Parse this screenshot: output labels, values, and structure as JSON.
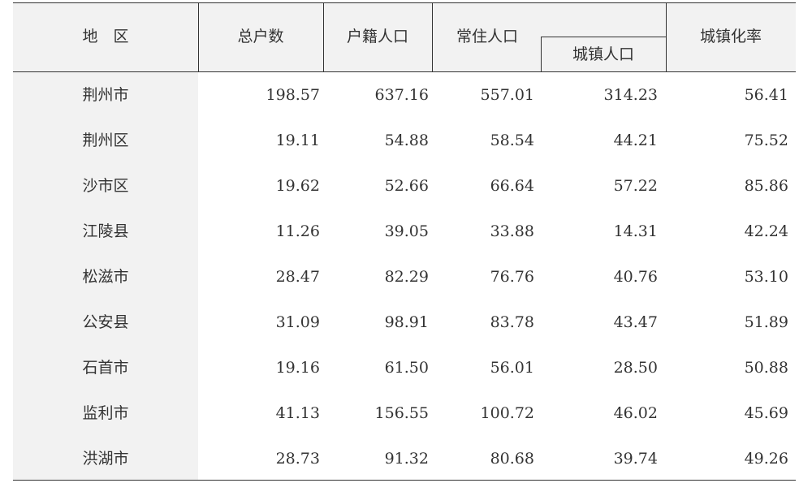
{
  "table": {
    "headers": {
      "region": "地　区",
      "total_households": "总户数",
      "registered_population": "户籍人口",
      "resident_population": "常住人口",
      "urban_population": "城镇人口",
      "urbanization_rate": "城镇化率"
    },
    "rows": [
      {
        "region": "荆州市",
        "total_households": "198.57",
        "registered_population": "637.16",
        "resident_population": "557.01",
        "urban_population": "314.23",
        "urbanization_rate": "56.41"
      },
      {
        "region": "荆州区",
        "total_households": "19.11",
        "registered_population": "54.88",
        "resident_population": "58.54",
        "urban_population": "44.21",
        "urbanization_rate": "75.52"
      },
      {
        "region": "沙市区",
        "total_households": "19.62",
        "registered_population": "52.66",
        "resident_population": "66.64",
        "urban_population": "57.22",
        "urbanization_rate": "85.86"
      },
      {
        "region": "江陵县",
        "total_households": "11.26",
        "registered_population": "39.05",
        "resident_population": "33.88",
        "urban_population": "14.31",
        "urbanization_rate": "42.24"
      },
      {
        "region": "松滋市",
        "total_households": "28.47",
        "registered_population": "82.29",
        "resident_population": "76.76",
        "urban_population": "40.76",
        "urbanization_rate": "53.10"
      },
      {
        "region": "公安县",
        "total_households": "31.09",
        "registered_population": "98.91",
        "resident_population": "83.78",
        "urban_population": "43.47",
        "urbanization_rate": "51.89"
      },
      {
        "region": "石首市",
        "total_households": "19.16",
        "registered_population": "61.50",
        "resident_population": "56.01",
        "urban_population": "28.50",
        "urbanization_rate": "50.88"
      },
      {
        "region": "监利市",
        "total_households": "41.13",
        "registered_population": "156.55",
        "resident_population": "100.72",
        "urban_population": "46.02",
        "urbanization_rate": "45.69"
      },
      {
        "region": "洪湖市",
        "total_households": "28.73",
        "registered_population": "91.32",
        "resident_population": "80.68",
        "urban_population": "39.74",
        "urbanization_rate": "49.26"
      }
    ]
  }
}
